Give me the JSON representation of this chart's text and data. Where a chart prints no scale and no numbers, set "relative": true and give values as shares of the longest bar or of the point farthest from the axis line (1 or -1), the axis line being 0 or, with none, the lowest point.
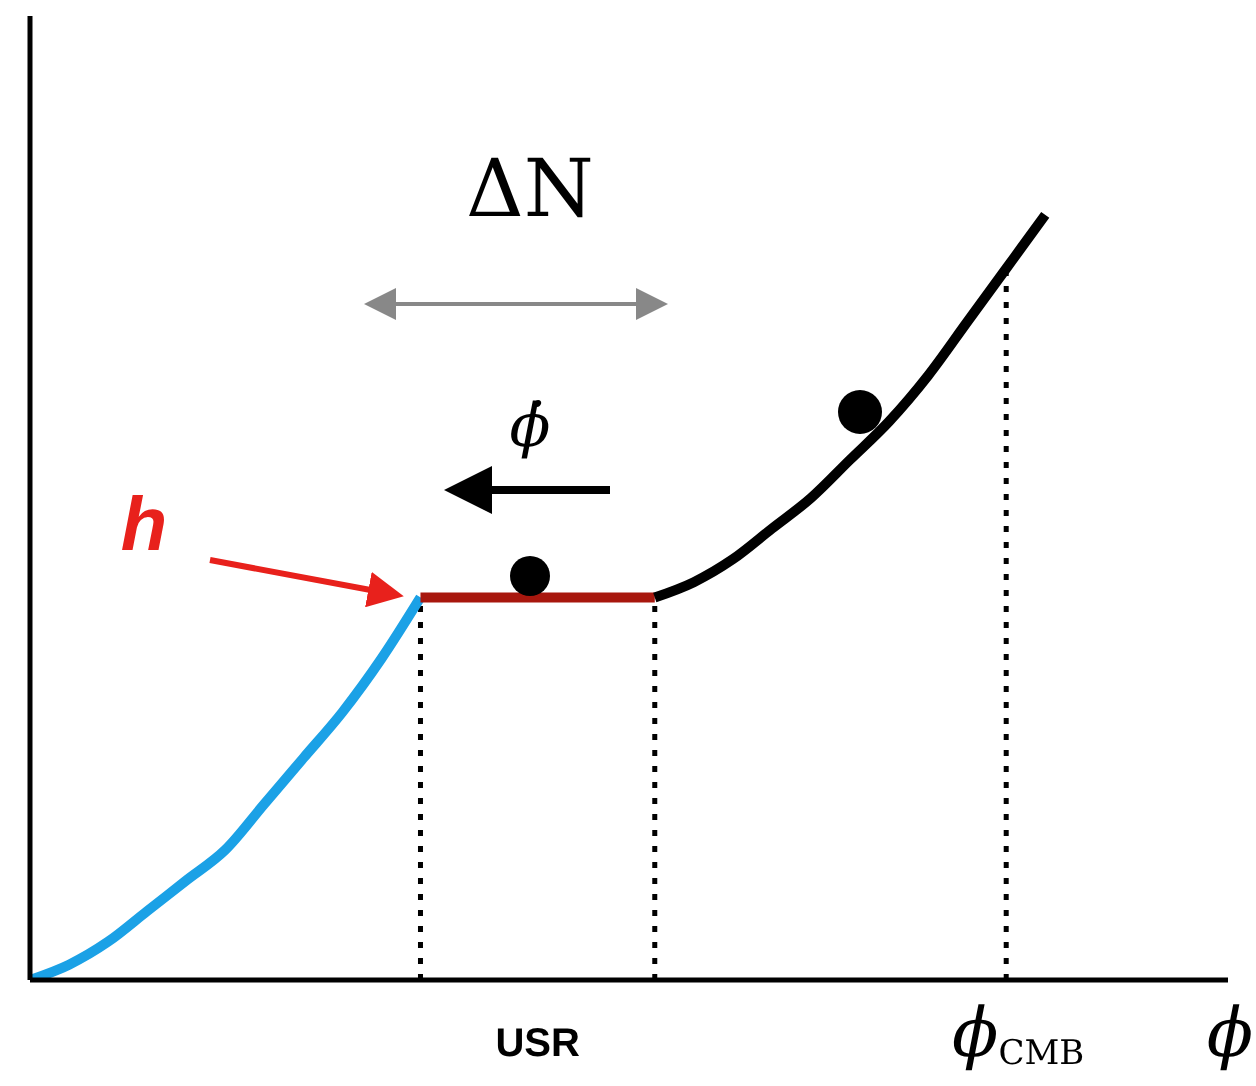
{
  "chart_data": {
    "type": "line",
    "relative": true,
    "xlabel": "ϕ",
    "categories": [
      null,
      null,
      null,
      null,
      null,
      null,
      null,
      null,
      null,
      null,
      null,
      null,
      null,
      "USR",
      null,
      null,
      null,
      null,
      null,
      null,
      null,
      null,
      null,
      null,
      null,
      "ϕ$_{CMB}$",
      null
    ],
    "series": [
      {
        "color": "#1ba1e6",
        "values": [
          0,
          0.02,
          0.05,
          0.09,
          0.13,
          0.17,
          0.23,
          0.29,
          0.35,
          0.42,
          0.5,
          null,
          null,
          null,
          null,
          null,
          null,
          null,
          null,
          null,
          null,
          null,
          null,
          null,
          null,
          null,
          null
        ]
      },
      {
        "color": "#a8170e",
        "values": [
          null,
          null,
          null,
          null,
          null,
          null,
          null,
          null,
          null,
          null,
          0.5,
          0.5,
          0.5,
          0.5,
          0.5,
          0.5,
          0.5,
          null,
          null,
          null,
          null,
          null,
          null,
          null,
          null,
          null,
          null
        ]
      },
      {
        "color": "#000000",
        "values": [
          null,
          null,
          null,
          null,
          null,
          null,
          null,
          null,
          null,
          null,
          null,
          null,
          null,
          null,
          null,
          null,
          0.5,
          0.52,
          0.55,
          0.59,
          0.63,
          0.68,
          0.73,
          0.79,
          0.86,
          0.93,
          1
        ]
      }
    ],
    "ref_lines": [
      {
        "axis": "x",
        "value": "ϕ$_{CMB}$",
        "line_style": "dotted"
      }
    ],
    "annotations": [
      "ΔN",
      "ϕ̇",
      "h"
    ]
  }
}
